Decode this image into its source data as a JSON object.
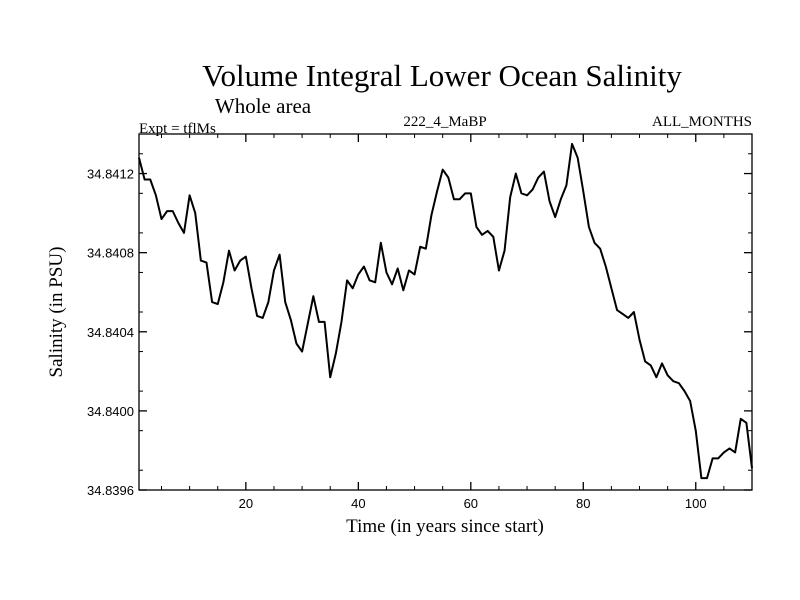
{
  "chart_data": {
    "type": "line",
    "title": "Volume Integral Lower Ocean Salinity",
    "subtitle": "Whole area",
    "header_left": "Expt = tflMs",
    "header_center": "222_4_MaBP",
    "header_right": "ALL_MONTHS",
    "xlabel": "Time (in years since start)",
    "ylabel": "Salinity (in PSU)",
    "xlim": [
      1,
      110
    ],
    "ylim": [
      34.8396,
      34.8414
    ],
    "x_ticks": [
      20,
      40,
      60,
      80,
      100
    ],
    "y_ticks": [
      34.8396,
      34.84,
      34.8404,
      34.8408,
      34.8412
    ],
    "x_tick_labels": [
      "20",
      "40",
      "60",
      "80",
      "100"
    ],
    "y_tick_labels": [
      "34.8396",
      "34.8400",
      "34.8404",
      "34.8408",
      "34.8412"
    ],
    "grid": false,
    "series": [
      {
        "name": "Salinity",
        "color": "#000000",
        "x": [
          1,
          2,
          3,
          4,
          5,
          6,
          7,
          8,
          9,
          10,
          11,
          12,
          13,
          14,
          15,
          16,
          17,
          18,
          19,
          20,
          21,
          22,
          23,
          24,
          25,
          26,
          27,
          28,
          29,
          30,
          31,
          32,
          33,
          34,
          35,
          36,
          37,
          38,
          39,
          40,
          41,
          42,
          43,
          44,
          45,
          46,
          47,
          48,
          49,
          50,
          51,
          52,
          53,
          54,
          55,
          56,
          57,
          58,
          59,
          60,
          61,
          62,
          63,
          64,
          65,
          66,
          67,
          68,
          69,
          70,
          71,
          72,
          73,
          74,
          75,
          76,
          77,
          78,
          79,
          80,
          81,
          82,
          83,
          84,
          85,
          86,
          87,
          88,
          89,
          90,
          91,
          92,
          93,
          94,
          95,
          96,
          97,
          98,
          99,
          100,
          101,
          102,
          103,
          104,
          105,
          106,
          107,
          108,
          109,
          110
        ],
        "values": [
          34.84128,
          34.84117,
          34.84117,
          34.84109,
          34.84097,
          34.84101,
          34.84101,
          34.84095,
          34.8409,
          34.84109,
          34.841,
          34.84076,
          34.84075,
          34.84055,
          34.84054,
          34.84065,
          34.84081,
          34.84071,
          34.84076,
          34.84078,
          34.84062,
          34.84048,
          34.84047,
          34.84055,
          34.84071,
          34.84079,
          34.84055,
          34.84046,
          34.84034,
          34.8403,
          34.84044,
          34.84058,
          34.84045,
          34.84045,
          34.84017,
          34.84029,
          34.84045,
          34.84066,
          34.84062,
          34.84069,
          34.84073,
          34.84066,
          34.84065,
          34.84085,
          34.8407,
          34.84064,
          34.84072,
          34.84061,
          34.84071,
          34.84069,
          34.84083,
          34.84082,
          34.84099,
          34.84111,
          34.84122,
          34.84118,
          34.84107,
          34.84107,
          34.8411,
          34.8411,
          34.84093,
          34.84089,
          34.84091,
          34.84088,
          34.84071,
          34.84081,
          34.84108,
          34.8412,
          34.8411,
          34.84109,
          34.84112,
          34.84118,
          34.84121,
          34.84106,
          34.84098,
          34.84107,
          34.84114,
          34.84135,
          34.84128,
          34.84111,
          34.84093,
          34.84085,
          34.84082,
          34.84073,
          34.84062,
          34.84051,
          34.84049,
          34.84047,
          34.8405,
          34.84036,
          34.84025,
          34.84023,
          34.84017,
          34.84024,
          34.84018,
          34.84015,
          34.84014,
          34.8401,
          34.84005,
          34.8399,
          34.83966,
          34.83966,
          34.83976,
          34.83976,
          34.83979,
          34.83981,
          34.83979,
          34.83996,
          34.83994,
          34.83971
        ]
      }
    ]
  }
}
